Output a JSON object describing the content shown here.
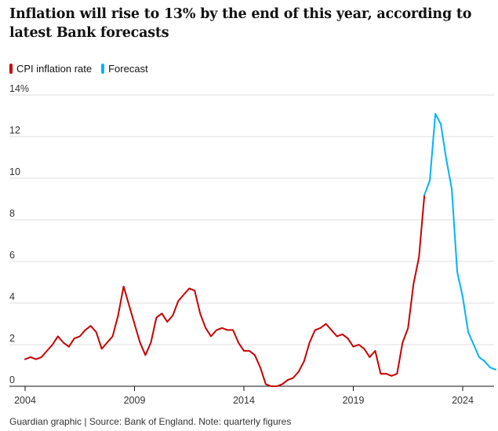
{
  "title": "Inflation will rise to 13% by the end of this year, according to latest Bank forecasts",
  "footer": "Guardian graphic | Source: Bank of England. Note: quarterly figures",
  "colors": {
    "cpi": "#c70000",
    "forecast": "#00b2ff",
    "grid": "#dcdcdc",
    "axis": "#121212"
  },
  "chart_data": {
    "type": "line",
    "title": "Inflation will rise to 13% by the end of this year, according to latest Bank forecasts",
    "ylim": [
      0,
      14
    ],
    "xlim": [
      2004,
      2025.5
    ],
    "y_ticks": [
      {
        "value": 0,
        "label": "0"
      },
      {
        "value": 2,
        "label": "2"
      },
      {
        "value": 4,
        "label": "4"
      },
      {
        "value": 6,
        "label": "6"
      },
      {
        "value": 8,
        "label": "8"
      },
      {
        "value": 10,
        "label": "10"
      },
      {
        "value": 12,
        "label": "12"
      },
      {
        "value": 14,
        "label": "14%"
      }
    ],
    "x_ticks": [
      {
        "value": 2004,
        "label": "2004"
      },
      {
        "value": 2009,
        "label": "2009"
      },
      {
        "value": 2014,
        "label": "2014"
      },
      {
        "value": 2019,
        "label": "2019"
      },
      {
        "value": 2024,
        "label": "2024"
      }
    ],
    "legend_position": "top-left",
    "grid": true,
    "series": [
      {
        "name": "CPI inflation rate",
        "color": "#c70000",
        "points": [
          [
            2004.0,
            1.3
          ],
          [
            2004.25,
            1.4
          ],
          [
            2004.5,
            1.3
          ],
          [
            2004.75,
            1.4
          ],
          [
            2005.0,
            1.7
          ],
          [
            2005.25,
            2.0
          ],
          [
            2005.5,
            2.4
          ],
          [
            2005.75,
            2.1
          ],
          [
            2006.0,
            1.9
          ],
          [
            2006.25,
            2.3
          ],
          [
            2006.5,
            2.4
          ],
          [
            2006.75,
            2.7
          ],
          [
            2007.0,
            2.9
          ],
          [
            2007.25,
            2.6
          ],
          [
            2007.5,
            1.8
          ],
          [
            2007.75,
            2.1
          ],
          [
            2008.0,
            2.4
          ],
          [
            2008.25,
            3.4
          ],
          [
            2008.5,
            4.8
          ],
          [
            2008.75,
            3.9
          ],
          [
            2009.0,
            3.0
          ],
          [
            2009.25,
            2.1
          ],
          [
            2009.5,
            1.5
          ],
          [
            2009.75,
            2.1
          ],
          [
            2010.0,
            3.3
          ],
          [
            2010.25,
            3.5
          ],
          [
            2010.5,
            3.1
          ],
          [
            2010.75,
            3.4
          ],
          [
            2011.0,
            4.1
          ],
          [
            2011.25,
            4.4
          ],
          [
            2011.5,
            4.7
          ],
          [
            2011.75,
            4.6
          ],
          [
            2012.0,
            3.5
          ],
          [
            2012.25,
            2.8
          ],
          [
            2012.5,
            2.4
          ],
          [
            2012.75,
            2.7
          ],
          [
            2013.0,
            2.8
          ],
          [
            2013.25,
            2.7
          ],
          [
            2013.5,
            2.7
          ],
          [
            2013.75,
            2.1
          ],
          [
            2014.0,
            1.7
          ],
          [
            2014.25,
            1.7
          ],
          [
            2014.5,
            1.5
          ],
          [
            2014.75,
            0.9
          ],
          [
            2015.0,
            0.1
          ],
          [
            2015.25,
            0.0
          ],
          [
            2015.5,
            0.0
          ],
          [
            2015.75,
            0.1
          ],
          [
            2016.0,
            0.3
          ],
          [
            2016.25,
            0.4
          ],
          [
            2016.5,
            0.7
          ],
          [
            2016.75,
            1.2
          ],
          [
            2017.0,
            2.1
          ],
          [
            2017.25,
            2.7
          ],
          [
            2017.5,
            2.8
          ],
          [
            2017.75,
            3.0
          ],
          [
            2018.0,
            2.7
          ],
          [
            2018.25,
            2.4
          ],
          [
            2018.5,
            2.5
          ],
          [
            2018.75,
            2.3
          ],
          [
            2019.0,
            1.9
          ],
          [
            2019.25,
            2.0
          ],
          [
            2019.5,
            1.8
          ],
          [
            2019.75,
            1.4
          ],
          [
            2020.0,
            1.7
          ],
          [
            2020.25,
            0.6
          ],
          [
            2020.5,
            0.6
          ],
          [
            2020.75,
            0.5
          ],
          [
            2021.0,
            0.6
          ],
          [
            2021.25,
            2.1
          ],
          [
            2021.5,
            2.8
          ],
          [
            2021.75,
            4.9
          ],
          [
            2022.0,
            6.2
          ],
          [
            2022.25,
            9.2
          ]
        ]
      },
      {
        "name": "Forecast",
        "color": "#00b2ff",
        "points": [
          [
            2022.25,
            9.2
          ],
          [
            2022.5,
            9.9
          ],
          [
            2022.75,
            13.1
          ],
          [
            2023.0,
            12.6
          ],
          [
            2023.25,
            10.9
          ],
          [
            2023.5,
            9.5
          ],
          [
            2023.75,
            5.5
          ],
          [
            2024.0,
            4.3
          ],
          [
            2024.25,
            2.6
          ],
          [
            2024.5,
            2.0
          ],
          [
            2024.75,
            1.4
          ],
          [
            2025.0,
            1.2
          ],
          [
            2025.25,
            0.9
          ],
          [
            2025.5,
            0.8
          ]
        ]
      }
    ]
  }
}
